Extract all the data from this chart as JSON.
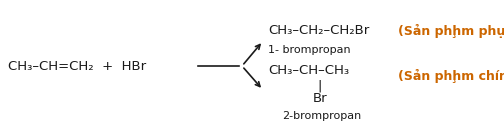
{
  "bg_color": "#ffffff",
  "reactant": "CH₃–CH=CH₂  +  HBr",
  "product1_formula": "CH₃–CH₂–CH₂Br",
  "product1_name": "1- brompropan",
  "product1_label": "(Sản phḩm phụ)",
  "product2_formula": "CH₃–CH–CH₃",
  "product2_sub": "Br",
  "product2_name": "2-brompropan",
  "product2_label": "(Sản phḩm chính)",
  "font_size_formula": 9.5,
  "font_size_name": 8,
  "font_size_label": 9,
  "font_size_reactant": 9.5,
  "label_color": "#cc6600",
  "text_color": "#1a1a1a"
}
